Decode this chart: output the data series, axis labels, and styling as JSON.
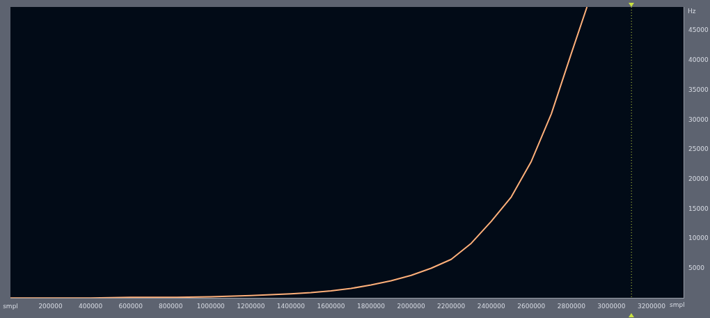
{
  "chart_data": {
    "type": "line",
    "xlabel": "smpl",
    "ylabel": "Hz",
    "x": [
      0,
      200000,
      400000,
      600000,
      800000,
      1000000,
      1200000,
      1400000,
      1500000,
      1600000,
      1700000,
      1800000,
      1900000,
      2000000,
      2100000,
      2200000,
      2300000,
      2400000,
      2500000,
      2600000,
      2700000,
      2800000,
      2878000
    ],
    "series": [
      {
        "color": "#ffb07a",
        "values": [
          0,
          0,
          0,
          100,
          100,
          200,
          400,
          700,
          900,
          1200,
          1600,
          2200,
          2900,
          3800,
          5000,
          6500,
          9200,
          12900,
          17000,
          23000,
          31000,
          41200,
          49000
        ]
      }
    ],
    "xlim": [
      0,
      3360000
    ],
    "ylim": [
      0,
      49000
    ],
    "xticks": [
      {
        "value": 0,
        "label": "smpl"
      },
      200000,
      400000,
      600000,
      800000,
      1000000,
      1200000,
      1400000,
      1600000,
      1800000,
      2000000,
      2200000,
      2400000,
      2600000,
      2800000,
      3000000,
      3200000
    ],
    "yticks": [
      5000,
      10000,
      15000,
      20000,
      25000,
      30000,
      35000,
      40000,
      45000
    ],
    "ref_lines": [
      {
        "axis": "x",
        "value": 3100000,
        "color": "#c8e040",
        "line_style": "dotted"
      }
    ],
    "grid": false,
    "legend": false,
    "marker": "none",
    "line_style": "solid"
  }
}
